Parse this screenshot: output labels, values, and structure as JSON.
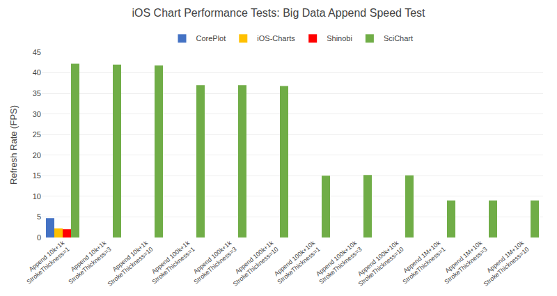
{
  "chart_data": {
    "type": "bar",
    "title": "iOS Chart Performance Tests: Big Data Append Speed Test",
    "ylabel": "Refresh Rate (FPS)",
    "categories": [
      "Append 10k+1k\nStrokeThickness=1",
      "Append 10k+1k\nStrokeThickness=3",
      "Append 10k+1k\nStrokeThickness=10",
      "Append 100k+1k\nStrokeThickness=1",
      "Append 100k+1k\nStrokeThickness=3",
      "Append 100k+1k\nStrokeThickness=10",
      "Append 100k+10k\nStrokeThickness=1",
      "Append 100k+10k\nStrokeThickness=3",
      "Append 100k+10k\nStrokeThickness=10",
      "Append 1M+10k\nStrokeThickness=1",
      "Append 1M+10k\nStrokeThickness=3",
      "Append 1M+10k\nStrokeThickness=10"
    ],
    "series": [
      {
        "name": "CorePlot",
        "color": "#4472C4",
        "values": [
          4.7,
          0,
          0,
          0,
          0,
          0,
          0,
          0,
          0,
          0,
          0,
          0
        ]
      },
      {
        "name": "iOS-Charts",
        "color": "#FFC000",
        "values": [
          2.2,
          0,
          0,
          0,
          0,
          0,
          0,
          0,
          0,
          0,
          0,
          0
        ]
      },
      {
        "name": "Shinobi",
        "color": "#FF0000",
        "values": [
          2.0,
          0,
          0,
          0,
          0,
          0,
          0,
          0,
          0,
          0,
          0,
          0
        ]
      },
      {
        "name": "SciChart",
        "color": "#70AD47",
        "values": [
          42.2,
          42.0,
          41.8,
          37.0,
          37.0,
          36.8,
          15.0,
          15.2,
          15.1,
          9.0,
          9.0,
          9.0
        ]
      }
    ],
    "ylim": [
      0,
      45
    ],
    "yticks": [
      0,
      5,
      10,
      15,
      20,
      25,
      30,
      35,
      40,
      45
    ],
    "grid": true,
    "legend": "top"
  }
}
